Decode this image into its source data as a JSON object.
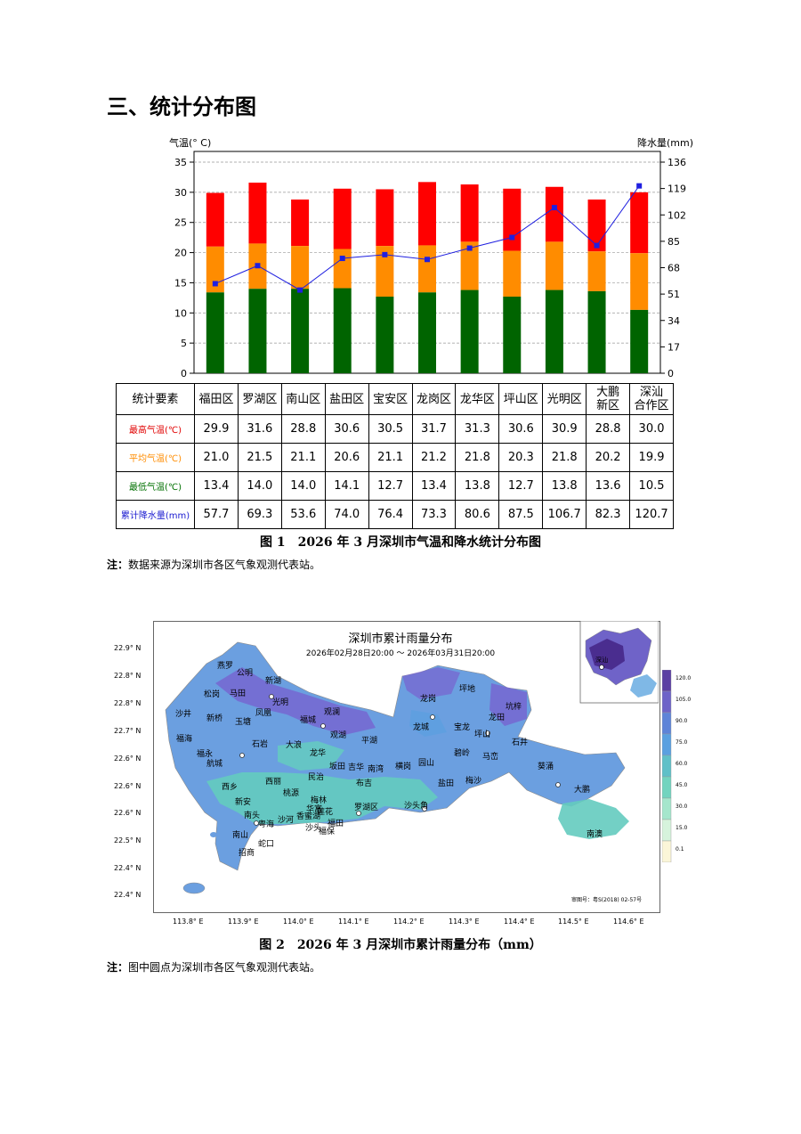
{
  "heading": "三、统计分布图",
  "chart_data": {
    "type": "bar",
    "left_axis_label": "气温(° C)",
    "right_axis_label": "降水量(mm)",
    "left_ticks": [
      "0",
      "5",
      "10",
      "15",
      "20",
      "25",
      "30",
      "35"
    ],
    "right_ticks": [
      "0",
      "17",
      "34",
      "51",
      "68",
      "85",
      "102",
      "119",
      "136"
    ],
    "ylim_left": [
      0,
      35
    ],
    "ylim_right": [
      0,
      136
    ],
    "categories": [
      "福田区",
      "罗湖区",
      "南山区",
      "盐田区",
      "宝安区",
      "龙岗区",
      "龙华区",
      "坪山区",
      "光明区",
      "大鹏新区",
      "深汕合作区"
    ],
    "series": [
      {
        "name": "最高气温(℃)",
        "values": [
          29.9,
          31.6,
          28.8,
          30.6,
          30.5,
          31.7,
          31.3,
          30.6,
          30.9,
          28.8,
          30.0
        ],
        "color": "#ff0000"
      },
      {
        "name": "平均气温(℃)",
        "values": [
          21.0,
          21.5,
          21.1,
          20.6,
          21.1,
          21.2,
          21.8,
          20.3,
          21.8,
          20.2,
          19.9
        ],
        "color": "#ff8c00"
      },
      {
        "name": "最低气温(℃)",
        "values": [
          13.4,
          14.0,
          14.0,
          14.1,
          12.7,
          13.4,
          13.8,
          12.7,
          13.8,
          13.6,
          10.5
        ],
        "color": "#006400"
      },
      {
        "name": "累计降水量(mm)",
        "values": [
          57.7,
          69.3,
          53.6,
          74.0,
          76.4,
          73.3,
          80.6,
          87.5,
          106.7,
          82.3,
          120.7
        ],
        "color": "#1f1fe0"
      }
    ]
  },
  "table": {
    "corner": "统计要素",
    "columns": [
      [
        "福田区"
      ],
      [
        "罗湖区"
      ],
      [
        "南山区"
      ],
      [
        "盐田区"
      ],
      [
        "宝安区"
      ],
      [
        "龙岗区"
      ],
      [
        "龙华区"
      ],
      [
        "坪山区"
      ],
      [
        "光明区"
      ],
      [
        "大鹏",
        "新区"
      ],
      [
        "深汕",
        "合作区"
      ]
    ],
    "rows": [
      {
        "label": "最高气温(℃)",
        "color": "#e00000",
        "cells": [
          "29.9",
          "31.6",
          "28.8",
          "30.6",
          "30.5",
          "31.7",
          "31.3",
          "30.6",
          "30.9",
          "28.8",
          "30.0"
        ]
      },
      {
        "label": "平均气温(℃)",
        "color": "#ff8c00",
        "cells": [
          "21.0",
          "21.5",
          "21.1",
          "20.6",
          "21.1",
          "21.2",
          "21.8",
          "20.3",
          "21.8",
          "20.2",
          "19.9"
        ]
      },
      {
        "label": "最低气温(℃)",
        "color": "#007000",
        "cells": [
          "13.4",
          "14.0",
          "14.0",
          "14.1",
          "12.7",
          "13.4",
          "13.8",
          "12.7",
          "13.8",
          "13.6",
          "10.5"
        ]
      },
      {
        "label": "累计降水量(mm)",
        "color": "#1a1ad0",
        "cells": [
          "57.7",
          "69.3",
          "53.6",
          "74.0",
          "76.4",
          "73.3",
          "80.6",
          "87.5",
          "106.7",
          "82.3",
          "120.7"
        ]
      }
    ]
  },
  "caption1": "图 1　2026 年 3 月深圳市气温和降水统计分布图",
  "note1_label": "注：",
  "note1_text": "数据来源为深圳市各区气象观测代表站。",
  "map": {
    "title": "深圳市累计雨量分布",
    "subtitle": "2026年02月28日20:00 ～ 2026年03月31日20:00",
    "lat_labels": [
      "22.9° N",
      "22.8° N",
      "22.8° N",
      "22.7° N",
      "22.6° N",
      "22.6° N",
      "22.6° N",
      "22.5° N",
      "22.4° N",
      "22.4° N"
    ],
    "lon_labels": [
      "113.8° E",
      "113.9° E",
      "114.0° E",
      "114.1° E",
      "114.2° E",
      "114.3° E",
      "114.4° E",
      "114.5° E",
      "114.6° E"
    ],
    "legend_labels": [
      "120.0",
      "105.0",
      "90.0",
      "75.0",
      "60.0",
      "45.0",
      "30.0",
      "15.0",
      "0.1"
    ],
    "legend_colors": [
      "#5b3fa3",
      "#6d63c8",
      "#5e84d8",
      "#5aa0e0",
      "#5fc0c8",
      "#72d4bf",
      "#a5e6cc",
      "#d6f3dc",
      "#fbf6d8"
    ],
    "inset_label": "深汕",
    "approval": "审图号：粤S(2018) 02-57号",
    "places": [
      "燕罗",
      "公明",
      "松岗",
      "马田",
      "新湖",
      "光明",
      "沙井",
      "新桥",
      "玉塘",
      "凤凰",
      "福城",
      "观澜",
      "福海",
      "石岩",
      "大浪",
      "观湖",
      "平湖",
      "福永",
      "航城",
      "龙华",
      "民治",
      "坂田",
      "吉华",
      "南湾",
      "横岗",
      "园山",
      "西乡",
      "西丽",
      "桃源",
      "布吉",
      "新安",
      "梅林",
      "南头",
      "粤海",
      "沙河",
      "香蜜湖",
      "莲花",
      "华富",
      "罗湖区",
      "南山",
      "沙头",
      "福田",
      "福保",
      "蛇口",
      "招商",
      "沙头角",
      "盐田",
      "梅沙",
      "龙岗",
      "坪地",
      "龙城",
      "宝龙",
      "坑梓",
      "龙田",
      "坪山",
      "碧岭",
      "马峦",
      "石井",
      "葵涌",
      "大鹏",
      "南澳"
    ]
  },
  "caption2": "图 2　2026 年 3 月深圳市累计雨量分布（mm）",
  "note2_label": "注：",
  "note2_text": "图中圆点为深圳市各区气象观测代表站。"
}
